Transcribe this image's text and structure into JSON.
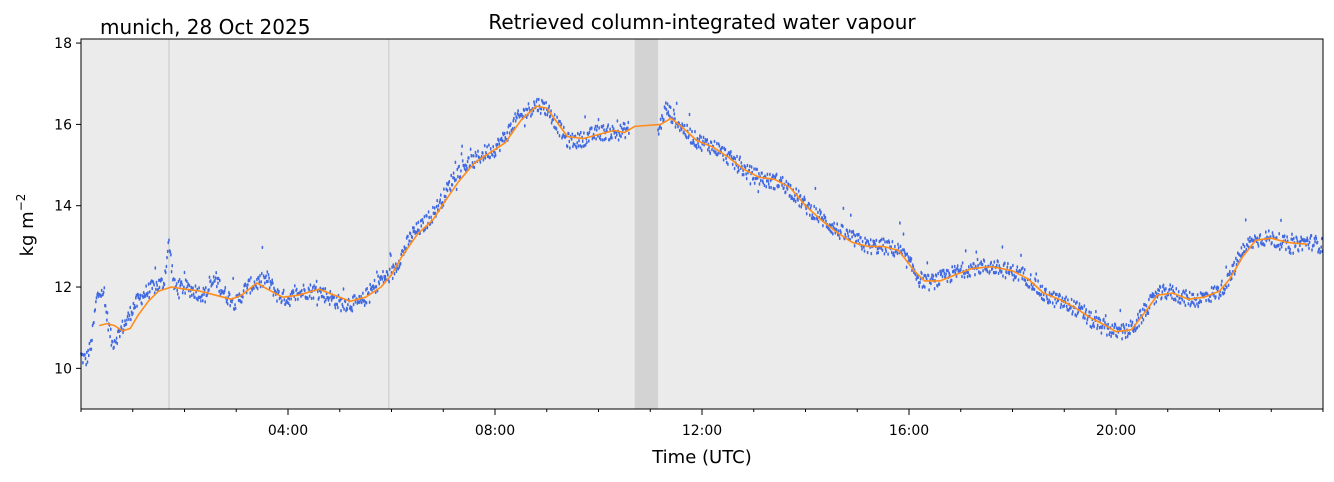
{
  "chart_data": {
    "type": "scatter",
    "title": "Retrieved column-integrated water vapour",
    "subtitle": "munich, 28 Oct 2025",
    "xlabel": "Time (UTC)",
    "ylabel": "kg m",
    "ylabel_sup": "−2",
    "xlim_hours": [
      0,
      24
    ],
    "ylim": [
      9,
      18.1
    ],
    "yticks": [
      "10",
      "12",
      "14",
      "16",
      "18"
    ],
    "xticks": [
      {
        "hour": 4,
        "label": "04:00"
      },
      {
        "hour": 8,
        "label": "08:00"
      },
      {
        "hour": 12,
        "label": "12:00"
      },
      {
        "hour": 16,
        "label": "16:00"
      },
      {
        "hour": 20,
        "label": "20:00"
      }
    ],
    "vertical_lines_hours": [
      1.7,
      5.95
    ],
    "gap_span_hours": [
      10.7,
      11.15
    ],
    "grid": false,
    "background_color": "#ebebeb",
    "series": [
      {
        "kind": "raw",
        "color": "#4169e1",
        "points": [
          [
            0.0,
            10.3
          ],
          [
            0.1,
            10.2
          ],
          [
            0.2,
            10.6
          ],
          [
            0.3,
            11.7
          ],
          [
            0.4,
            12.0
          ],
          [
            0.5,
            11.3
          ],
          [
            0.6,
            10.6
          ],
          [
            0.75,
            10.9
          ],
          [
            0.9,
            11.2
          ],
          [
            1.0,
            11.5
          ],
          [
            1.2,
            11.8
          ],
          [
            1.4,
            12.0
          ],
          [
            1.6,
            12.1
          ],
          [
            1.7,
            13.1
          ],
          [
            1.8,
            12.0
          ],
          [
            2.0,
            12.0
          ],
          [
            2.2,
            11.9
          ],
          [
            2.4,
            11.8
          ],
          [
            2.6,
            12.2
          ],
          [
            2.8,
            11.8
          ],
          [
            3.0,
            11.6
          ],
          [
            3.2,
            12.0
          ],
          [
            3.4,
            12.1
          ],
          [
            3.6,
            12.2
          ],
          [
            3.8,
            11.8
          ],
          [
            4.0,
            11.7
          ],
          [
            4.3,
            11.9
          ],
          [
            4.6,
            11.9
          ],
          [
            5.0,
            11.6
          ],
          [
            5.4,
            11.6
          ],
          [
            5.6,
            11.9
          ],
          [
            5.8,
            12.2
          ],
          [
            6.0,
            12.3
          ],
          [
            6.2,
            12.8
          ],
          [
            6.4,
            13.3
          ],
          [
            6.6,
            13.5
          ],
          [
            6.8,
            13.8
          ],
          [
            7.0,
            14.2
          ],
          [
            7.2,
            14.7
          ],
          [
            7.4,
            15.0
          ],
          [
            7.6,
            15.1
          ],
          [
            7.8,
            15.3
          ],
          [
            8.0,
            15.4
          ],
          [
            8.2,
            15.7
          ],
          [
            8.4,
            16.1
          ],
          [
            8.6,
            16.3
          ],
          [
            8.8,
            16.5
          ],
          [
            9.0,
            16.4
          ],
          [
            9.2,
            16.0
          ],
          [
            9.4,
            15.6
          ],
          [
            9.6,
            15.6
          ],
          [
            9.8,
            15.7
          ],
          [
            10.0,
            15.8
          ],
          [
            10.2,
            15.8
          ],
          [
            10.4,
            15.8
          ],
          [
            10.6,
            15.9
          ],
          [
            11.15,
            15.8
          ],
          [
            11.3,
            16.4
          ],
          [
            11.5,
            16.1
          ],
          [
            11.7,
            15.8
          ],
          [
            11.9,
            15.6
          ],
          [
            12.1,
            15.5
          ],
          [
            12.3,
            15.4
          ],
          [
            12.5,
            15.2
          ],
          [
            12.7,
            15.0
          ],
          [
            12.9,
            14.8
          ],
          [
            13.1,
            14.7
          ],
          [
            13.3,
            14.6
          ],
          [
            13.5,
            14.6
          ],
          [
            13.7,
            14.4
          ],
          [
            14.0,
            14.0
          ],
          [
            14.3,
            13.7
          ],
          [
            14.6,
            13.4
          ],
          [
            14.9,
            13.2
          ],
          [
            15.2,
            13.0
          ],
          [
            15.5,
            13.0
          ],
          [
            15.8,
            12.9
          ],
          [
            16.0,
            12.6
          ],
          [
            16.2,
            12.2
          ],
          [
            16.4,
            12.1
          ],
          [
            16.6,
            12.2
          ],
          [
            16.8,
            12.3
          ],
          [
            17.0,
            12.4
          ],
          [
            17.3,
            12.5
          ],
          [
            17.6,
            12.5
          ],
          [
            17.9,
            12.4
          ],
          [
            18.2,
            12.3
          ],
          [
            18.4,
            12.1
          ],
          [
            18.6,
            11.8
          ],
          [
            18.8,
            11.7
          ],
          [
            19.0,
            11.6
          ],
          [
            19.2,
            11.5
          ],
          [
            19.4,
            11.3
          ],
          [
            19.6,
            11.1
          ],
          [
            19.8,
            11.0
          ],
          [
            20.0,
            10.9
          ],
          [
            20.2,
            10.9
          ],
          [
            20.4,
            11.1
          ],
          [
            20.6,
            11.5
          ],
          [
            20.8,
            11.8
          ],
          [
            21.0,
            11.9
          ],
          [
            21.2,
            11.8
          ],
          [
            21.4,
            11.7
          ],
          [
            21.6,
            11.7
          ],
          [
            21.8,
            11.8
          ],
          [
            22.0,
            11.9
          ],
          [
            22.2,
            12.2
          ],
          [
            22.4,
            12.8
          ],
          [
            22.6,
            13.1
          ],
          [
            22.8,
            13.2
          ],
          [
            23.0,
            13.2
          ],
          [
            23.2,
            13.1
          ],
          [
            23.4,
            13.0
          ],
          [
            23.6,
            13.1
          ],
          [
            23.8,
            13.1
          ],
          [
            24.0,
            13.0
          ]
        ]
      },
      {
        "kind": "smoothed",
        "color": "#ff8c1a",
        "points": [
          [
            0.35,
            11.05
          ],
          [
            0.5,
            11.1
          ],
          [
            0.65,
            11.05
          ],
          [
            0.8,
            10.92
          ],
          [
            0.95,
            10.98
          ],
          [
            1.1,
            11.3
          ],
          [
            1.3,
            11.65
          ],
          [
            1.5,
            11.9
          ],
          [
            1.75,
            12.0
          ],
          [
            2.0,
            11.95
          ],
          [
            2.3,
            11.9
          ],
          [
            2.6,
            11.8
          ],
          [
            2.9,
            11.7
          ],
          [
            3.1,
            11.8
          ],
          [
            3.4,
            12.1
          ],
          [
            3.6,
            11.95
          ],
          [
            3.9,
            11.75
          ],
          [
            4.2,
            11.8
          ],
          [
            4.6,
            11.95
          ],
          [
            4.9,
            11.8
          ],
          [
            5.2,
            11.65
          ],
          [
            5.5,
            11.75
          ],
          [
            5.8,
            12.0
          ],
          [
            6.0,
            12.3
          ],
          [
            6.2,
            12.75
          ],
          [
            6.5,
            13.3
          ],
          [
            6.8,
            13.65
          ],
          [
            7.0,
            14.05
          ],
          [
            7.3,
            14.6
          ],
          [
            7.6,
            15.05
          ],
          [
            7.9,
            15.3
          ],
          [
            8.2,
            15.55
          ],
          [
            8.5,
            16.1
          ],
          [
            8.8,
            16.45
          ],
          [
            9.0,
            16.4
          ],
          [
            9.2,
            16.05
          ],
          [
            9.4,
            15.7
          ],
          [
            9.7,
            15.65
          ],
          [
            10.0,
            15.75
          ],
          [
            10.3,
            15.85
          ],
          [
            10.5,
            15.8
          ],
          [
            10.7,
            15.95
          ],
          [
            11.2,
            16.0
          ],
          [
            11.4,
            16.15
          ],
          [
            11.6,
            15.95
          ],
          [
            11.9,
            15.6
          ],
          [
            12.2,
            15.45
          ],
          [
            12.5,
            15.2
          ],
          [
            12.8,
            14.9
          ],
          [
            13.1,
            14.7
          ],
          [
            13.4,
            14.65
          ],
          [
            13.7,
            14.45
          ],
          [
            14.0,
            14.0
          ],
          [
            14.3,
            13.65
          ],
          [
            14.6,
            13.35
          ],
          [
            14.9,
            13.1
          ],
          [
            15.2,
            13.0
          ],
          [
            15.5,
            13.0
          ],
          [
            15.8,
            12.9
          ],
          [
            16.1,
            12.4
          ],
          [
            16.3,
            12.15
          ],
          [
            16.6,
            12.15
          ],
          [
            16.9,
            12.3
          ],
          [
            17.2,
            12.45
          ],
          [
            17.6,
            12.5
          ],
          [
            18.0,
            12.4
          ],
          [
            18.3,
            12.2
          ],
          [
            18.6,
            11.85
          ],
          [
            18.9,
            11.7
          ],
          [
            19.2,
            11.5
          ],
          [
            19.5,
            11.25
          ],
          [
            19.8,
            11.05
          ],
          [
            20.0,
            10.9
          ],
          [
            20.3,
            10.95
          ],
          [
            20.6,
            11.45
          ],
          [
            20.8,
            11.8
          ],
          [
            21.1,
            11.85
          ],
          [
            21.4,
            11.7
          ],
          [
            21.7,
            11.75
          ],
          [
            22.0,
            11.9
          ],
          [
            22.2,
            12.2
          ],
          [
            22.45,
            12.75
          ],
          [
            22.7,
            13.15
          ],
          [
            23.0,
            13.2
          ],
          [
            23.3,
            13.1
          ],
          [
            23.7,
            13.05
          ]
        ]
      }
    ]
  }
}
